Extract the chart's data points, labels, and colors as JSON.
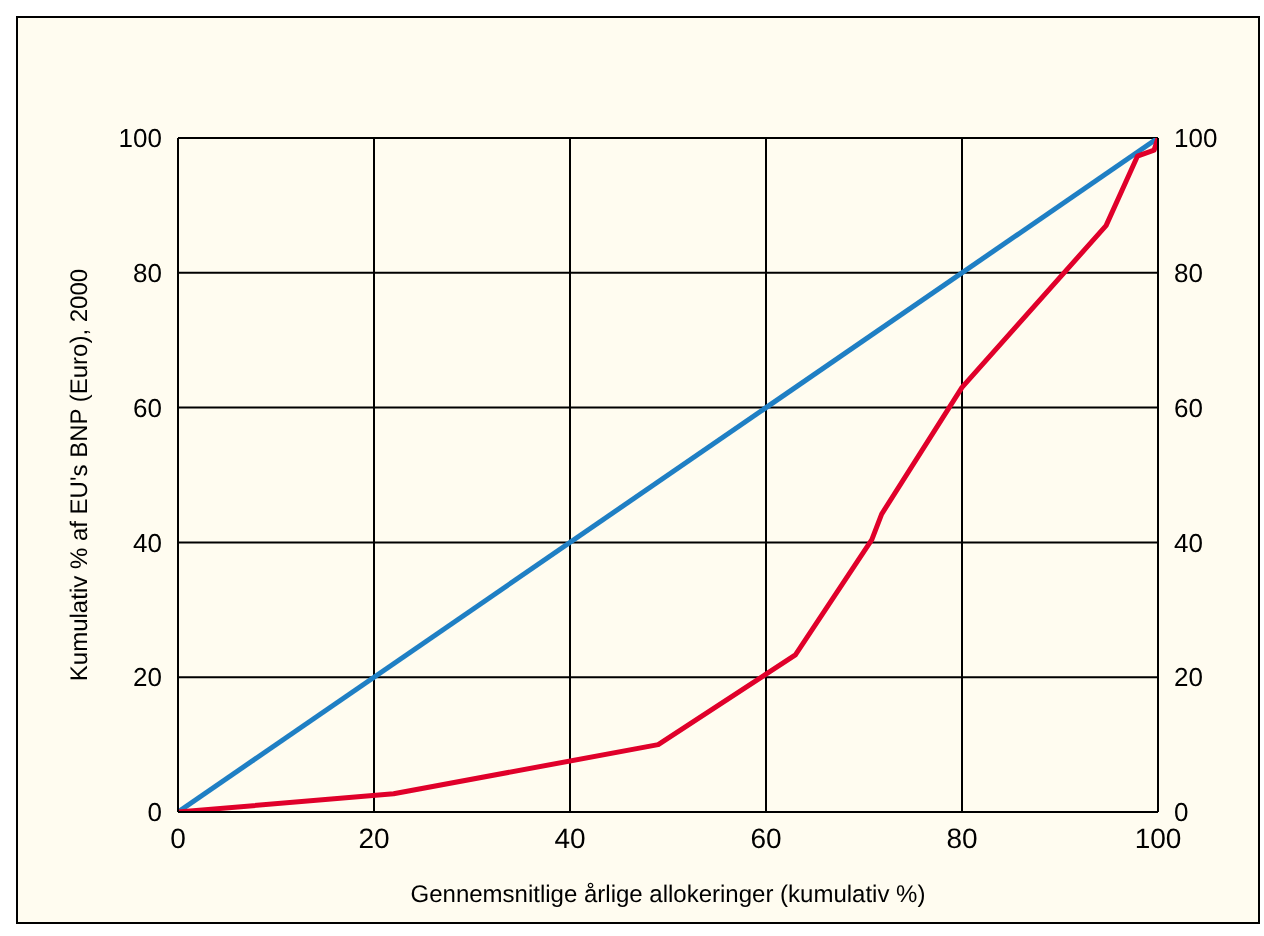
{
  "chart_data": {
    "type": "line",
    "xlabel": "Gennemsnitlige årlige allokeringer (kumulativ %)",
    "ylabel": "Kumulativ % af EU's BNP (Euro), 2000",
    "series": [
      {
        "color": "#1f7fc4",
        "x": [
          0,
          100
        ],
        "values": [
          0,
          100
        ]
      },
      {
        "color": "#e0002a",
        "x": [
          0,
          22,
          49,
          63,
          70.8,
          71.8,
          80,
          94.7,
          97.9,
          99.6,
          100
        ],
        "values": [
          0,
          2.7,
          10,
          23.3,
          40.4,
          44.2,
          63,
          87,
          97.3,
          98.2,
          100
        ]
      }
    ],
    "xlim": [
      0,
      100
    ],
    "xticks": [
      0,
      20,
      40,
      60,
      80,
      100
    ],
    "ylim": [
      0,
      100
    ],
    "yticks": [
      0,
      20,
      40,
      60,
      80,
      100
    ],
    "y2lim": [
      0,
      100
    ],
    "y2ticks": [
      0,
      20,
      40,
      60,
      80,
      100
    ],
    "grid": true,
    "marker": "none",
    "line_style": "solid"
  }
}
